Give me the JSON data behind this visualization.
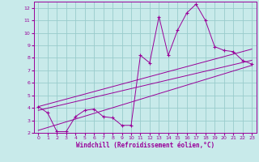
{
  "xlabel": "Windchill (Refroidissement éolien,°C)",
  "bg_color": "#c8eaea",
  "line_color": "#990099",
  "grid_color": "#99cccc",
  "xlim": [
    -0.5,
    23.5
  ],
  "ylim": [
    2,
    12.5
  ],
  "xticks": [
    0,
    1,
    2,
    3,
    4,
    5,
    6,
    7,
    8,
    9,
    10,
    11,
    12,
    13,
    14,
    15,
    16,
    17,
    18,
    19,
    20,
    21,
    22,
    23
  ],
  "yticks": [
    2,
    3,
    4,
    5,
    6,
    7,
    8,
    9,
    10,
    11,
    12
  ],
  "series1_x": [
    0,
    1,
    2,
    3,
    4,
    5,
    6,
    7,
    8,
    9,
    10,
    11,
    12,
    13,
    14,
    15,
    16,
    17,
    18,
    19,
    20,
    21,
    22,
    23
  ],
  "series1_y": [
    4.1,
    3.6,
    2.1,
    2.1,
    3.3,
    3.8,
    3.9,
    3.3,
    3.2,
    2.6,
    2.6,
    8.2,
    7.6,
    11.3,
    8.2,
    10.2,
    11.6,
    12.3,
    11.0,
    8.9,
    8.6,
    8.5,
    7.8,
    7.5
  ],
  "series2_x": [
    0,
    23
  ],
  "series2_y": [
    2.2,
    7.4
  ],
  "series3_x": [
    0,
    23
  ],
  "series3_y": [
    3.8,
    7.8
  ],
  "series4_x": [
    0,
    23
  ],
  "series4_y": [
    4.1,
    8.7
  ]
}
